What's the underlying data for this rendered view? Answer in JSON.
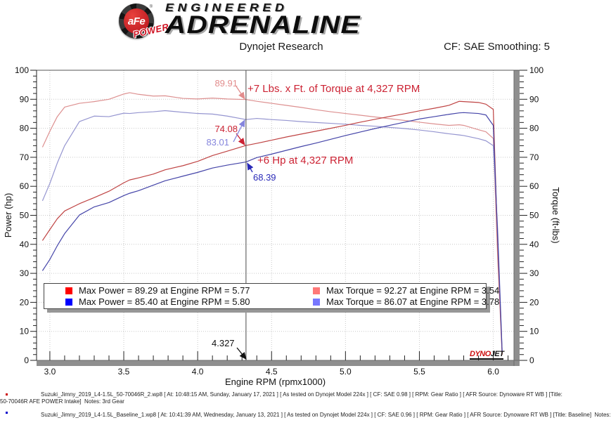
{
  "header": {
    "badge": {
      "brand": "aFe",
      "sub": "POWER",
      "reg": "®"
    },
    "logo_line1": "ENGINEERED",
    "logo_line2": "ADRENALINE",
    "title": "Dynojet Research",
    "smoothing": "CF: SAE Smoothing: 5"
  },
  "chart_data": {
    "type": "line",
    "title": "Dynojet Research",
    "xlabel": "Engine RPM (rpmx1000)",
    "ylabel_left": "Power (hp)",
    "ylabel_right": "Torque (ft-lbs)",
    "xlim": [
      2.91,
      6.14
    ],
    "ylim": [
      0,
      100
    ],
    "x_major_ticks": [
      3.0,
      3.5,
      4.0,
      4.5,
      5.0,
      5.5,
      6.0
    ],
    "y_major_tick_step": 10,
    "y_minor_tick_step": 2,
    "x_minor_tick_step": 0.1,
    "grid": true,
    "cursor_rpm": 4.327,
    "x": [
      2.95,
      3.0,
      3.05,
      3.1,
      3.2,
      3.3,
      3.4,
      3.5,
      3.54,
      3.6,
      3.7,
      3.78,
      3.9,
      4.0,
      4.1,
      4.2,
      4.327,
      4.4,
      4.5,
      4.6,
      4.7,
      4.8,
      4.9,
      5.0,
      5.1,
      5.2,
      5.3,
      5.4,
      5.5,
      5.6,
      5.7,
      5.77,
      5.8,
      5.9,
      5.95,
      6.0,
      6.03,
      6.06
    ],
    "series": [
      {
        "name": "Max Power = 89.29 at Engine RPM = 5.77",
        "kind": "power",
        "color": "#bf4343",
        "legend_color": "#ff0000",
        "values": [
          41.3,
          45.1,
          48.8,
          51.5,
          54.0,
          56.1,
          58.3,
          61.2,
          62.2,
          62.9,
          64.2,
          65.7,
          67.1,
          68.6,
          70.6,
          72.1,
          74.08,
          74.8,
          75.9,
          77.0,
          78.0,
          79.0,
          80.0,
          81.0,
          82.1,
          83.1,
          84.1,
          85.0,
          86.0,
          86.9,
          87.9,
          89.29,
          89.2,
          88.9,
          88.3,
          86.5,
          40,
          2
        ]
      },
      {
        "name": "Max Power = 85.40 at Engine RPM = 5.80",
        "kind": "power",
        "color": "#4444a8",
        "legend_color": "#0000ff",
        "values": [
          30.9,
          34.8,
          39.5,
          43.7,
          50.1,
          52.9,
          54.4,
          56.8,
          57.6,
          58.5,
          60.4,
          61.9,
          63.5,
          64.8,
          66.3,
          67.3,
          68.39,
          69.9,
          71.1,
          72.4,
          73.7,
          74.9,
          76.2,
          77.5,
          78.7,
          79.9,
          81.0,
          82.1,
          83.2,
          84.0,
          84.8,
          85.3,
          85.4,
          85.1,
          84.6,
          81.0,
          42,
          3
        ]
      },
      {
        "name": "Max Torque = 92.27 at Engine RPM = 3.54",
        "kind": "torque",
        "color": "#dd9090",
        "legend_color": "#ff7878",
        "values": [
          73.5,
          79,
          84,
          87.3,
          88.6,
          89.2,
          90.0,
          91.8,
          92.27,
          91.7,
          91.1,
          91.2,
          90.3,
          90.1,
          90.4,
          90.1,
          89.91,
          89.3,
          88.6,
          87.9,
          87.2,
          86.4,
          85.7,
          85.1,
          84.5,
          83.9,
          83.3,
          82.7,
          82.1,
          81.5,
          81.0,
          81.2,
          81.0,
          79.5,
          78.8,
          76.5,
          35,
          2
        ]
      },
      {
        "name": "Max Torque = 86.07 at Engine RPM = 3.78",
        "kind": "torque",
        "color": "#9595d0",
        "legend_color": "#7878ff",
        "values": [
          55,
          61,
          68,
          74,
          82.3,
          84.2,
          84.0,
          85.2,
          85.1,
          85.4,
          85.7,
          86.07,
          85.5,
          85.1,
          84.9,
          84.2,
          83.01,
          83.4,
          83.0,
          82.7,
          82.3,
          82.0,
          81.7,
          81.4,
          81.0,
          80.7,
          80.3,
          79.9,
          79.4,
          78.8,
          78.1,
          77.7,
          77.5,
          76.4,
          75.7,
          74.0,
          45,
          3
        ]
      }
    ]
  },
  "annotations": {
    "torque_pink_value": {
      "text": "89.91",
      "color": "#e28d8d",
      "value": 89.91
    },
    "torque_gain": {
      "text": "+7 Lbs. x Ft. of Torque at 4,327 RPM",
      "color": "#cc2233"
    },
    "power_red_value": {
      "text": "74.08",
      "color": "#cc2233",
      "value": 74.08
    },
    "torque_blue_value": {
      "text": "83.01",
      "color": "#8585dd",
      "value": 83.01
    },
    "power_gain": {
      "text": "+6 Hp at 4,327 RPM",
      "color": "#cc2233"
    },
    "power_blue_value": {
      "text": "68.39",
      "color": "#2a2ab8",
      "value": 68.39
    },
    "cursor_label": {
      "text": "4.327",
      "color": "#111111",
      "value": 4.327
    }
  },
  "watermark": {
    "dyno": "DYNO",
    "jet": "JET"
  },
  "footer": {
    "lines": [
      {
        "bullet_color": "#cc0000",
        "text": "Suzuki_Jimny_2019_L4-1.5L_50-70046R_2.wp8 [ At: 10:48:15 AM, Sunday, January 17, 2021 ] [ As tested on Dynojet Model 224x ] [ CF: SAE 0.98 ] [ RPM: Gear Ratio ] [ AFR Source: Dynoware RT WB ] [Title: 50-70046R AFE POWER Intake]  Notes: 3rd Gear"
      },
      {
        "bullet_color": "#0000cc",
        "text": "Suzuki_Jimny_2019_L4-1.5L_Baseline_1.wp8 [ At: 10:41:39 AM, Wednesday, January 13, 2021 ] [ As tested on Dynojet Model 224x ] [ CF: SAE 0.96 ] [ RPM: Gear Ratio ] [ AFR Source: Dynoware RT WB ] [Title: Baseline]  Notes:"
      }
    ]
  }
}
